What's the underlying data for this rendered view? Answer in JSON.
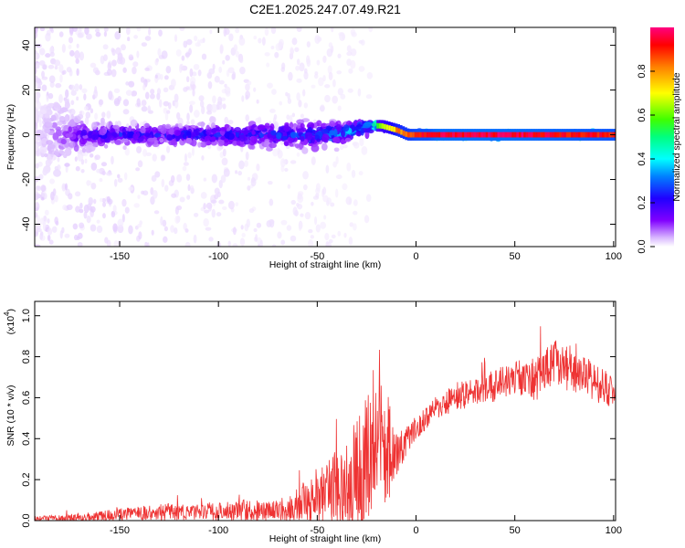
{
  "title": "C2E1.2025.247.07.49.R21",
  "chart_data": [
    {
      "type": "heatmap",
      "name": "spectrogram",
      "xlabel": "Height of straight line (km)",
      "ylabel": "Frequency (Hz)",
      "xlim": [
        -193,
        101
      ],
      "ylim": [
        -50,
        48
      ],
      "xticks": [
        -150,
        -100,
        -50,
        0,
        50,
        100
      ],
      "yticks": [
        -40,
        -20,
        0,
        20,
        40
      ],
      "colorbar": {
        "label": "Normalized spectral amplitude",
        "range": [
          0,
          1
        ],
        "ticks": [
          "0.0",
          "0.2",
          "0.4",
          "0.6",
          "0.8"
        ],
        "tick_values": [
          0,
          0.2,
          0.4,
          0.6,
          0.8
        ],
        "colors": [
          "#ffffff",
          "#d9b8ff",
          "#8000ff",
          "#2000ff",
          "#0080ff",
          "#00ffff",
          "#00ff80",
          "#40ff00",
          "#ffff00",
          "#ff8000",
          "#ff0000",
          "#ff0080"
        ]
      },
      "track": {
        "x": [
          -193,
          -170,
          -150,
          -120,
          -100,
          -80,
          -60,
          -40,
          -25,
          -18,
          -10,
          -5,
          0,
          5,
          10,
          50,
          100
        ],
        "center_hz": [
          0,
          0,
          0,
          0,
          0,
          0,
          0,
          0,
          4,
          4,
          2,
          0,
          0,
          0,
          0,
          0,
          0
        ],
        "amplitude": [
          0.05,
          0.25,
          0.3,
          0.3,
          0.3,
          0.32,
          0.35,
          0.4,
          0.45,
          0.7,
          0.85,
          0.9,
          0.95,
          0.95,
          1.0,
          1.0,
          0.95
        ],
        "spread_hz": [
          45,
          12,
          8,
          8,
          9,
          9,
          10,
          9,
          6,
          2,
          2,
          2,
          2,
          2,
          2,
          2,
          2
        ]
      }
    },
    {
      "type": "line",
      "name": "snr",
      "xlabel": "Height of straight line (km)",
      "ylabel": "SNR (10 * v/v)",
      "y_multiplier_label": "(x10",
      "y_multiplier_exp": "4",
      "xlim": [
        -193,
        101
      ],
      "ylim": [
        0,
        1.07
      ],
      "xticks": [
        -150,
        -100,
        -50,
        0,
        50,
        100
      ],
      "yticks": [
        0.0,
        0.2,
        0.4,
        0.6,
        0.8,
        1.0
      ],
      "ytick_labels": [
        "0.0",
        "0.2",
        "0.4",
        "0.6",
        "0.8",
        "1.0"
      ],
      "color": "#ee3333",
      "envelope": {
        "x": [
          -193,
          -170,
          -150,
          -130,
          -110,
          -90,
          -70,
          -60,
          -50,
          -40,
          -30,
          -25,
          -20,
          -15,
          -10,
          -5,
          0,
          10,
          20,
          30,
          40,
          50,
          60,
          70,
          80,
          90,
          100
        ],
        "mean": [
          0.01,
          0.015,
          0.03,
          0.04,
          0.04,
          0.05,
          0.05,
          0.08,
          0.12,
          0.16,
          0.22,
          0.3,
          0.4,
          0.35,
          0.32,
          0.38,
          0.45,
          0.55,
          0.6,
          0.63,
          0.66,
          0.7,
          0.68,
          0.78,
          0.72,
          0.68,
          0.62
        ],
        "spread": [
          0.01,
          0.02,
          0.03,
          0.04,
          0.04,
          0.05,
          0.05,
          0.08,
          0.14,
          0.2,
          0.28,
          0.3,
          0.32,
          0.3,
          0.1,
          0.08,
          0.06,
          0.06,
          0.07,
          0.07,
          0.08,
          0.08,
          0.1,
          0.12,
          0.1,
          0.1,
          0.08
        ]
      }
    }
  ]
}
